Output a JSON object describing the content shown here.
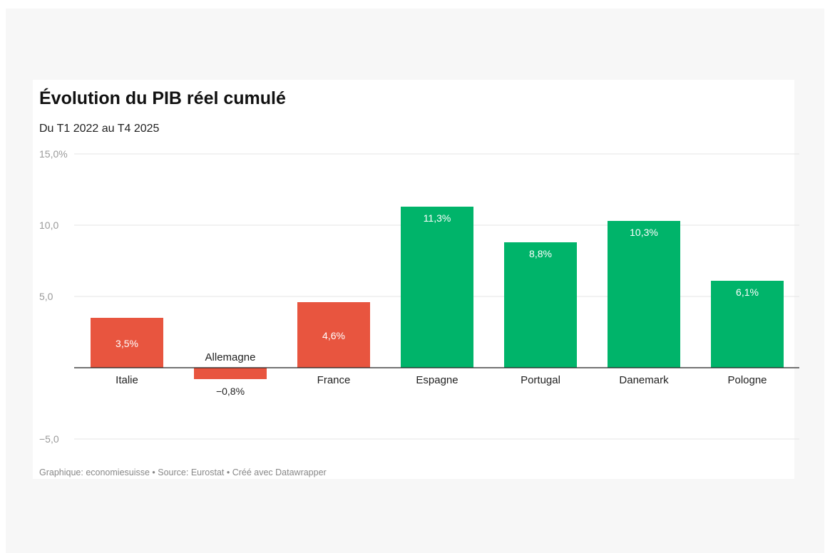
{
  "chart_data": {
    "type": "bar",
    "title": "Évolution du PIB réel cumulé",
    "subtitle": "Du T1 2022 au T4 2025",
    "footer": "Graphique: economiesuisse • Source: Eurostat • Créé avec Datawrapper",
    "categories": [
      "Italie",
      "Allemagne",
      "France",
      "Espagne",
      "Portugal",
      "Danemark",
      "Pologne"
    ],
    "values": [
      3.5,
      -0.8,
      4.6,
      11.3,
      8.8,
      10.3,
      6.1
    ],
    "value_labels": [
      "3,5%",
      "−0,8%",
      "4,6%",
      "11,3%",
      "8,8%",
      "10,3%",
      "6,1%"
    ],
    "bar_colors": [
      "#e8553f",
      "#e8553f",
      "#e8553f",
      "#00b46a",
      "#00b46a",
      "#00b46a",
      "#00b46a"
    ],
    "yticks": [
      -5,
      5,
      10,
      15
    ],
    "ytick_labels": [
      "−5,0",
      "5,0",
      "10,0",
      "15,0%"
    ],
    "ylim": [
      -5,
      15
    ],
    "grid": true,
    "xlabel": "",
    "ylabel": ""
  },
  "colors": {
    "background": "#f7f7f7",
    "card": "#ffffff",
    "gridline": "#e4e4e4",
    "baseline": "#222222",
    "tick_label": "#9a9a9a",
    "category_label": "#222222",
    "inside_label": "#ffffff"
  }
}
